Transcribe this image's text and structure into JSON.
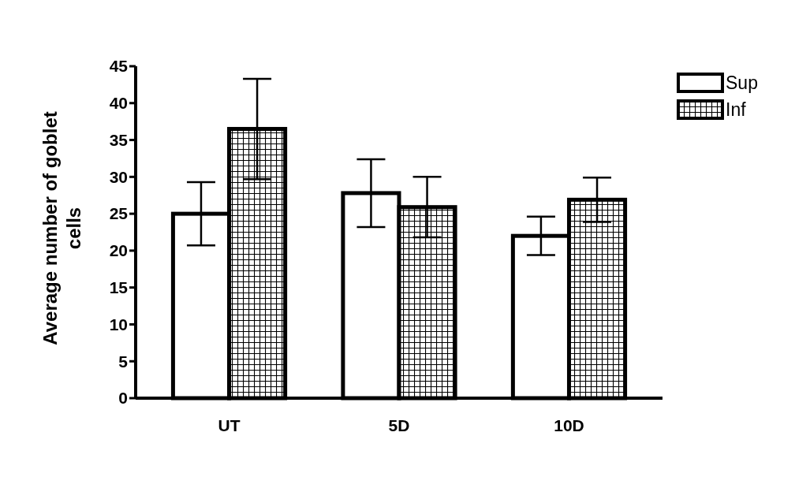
{
  "chart_data": {
    "type": "bar",
    "ylabel": "Average number of goblet cells",
    "categories": [
      "UT",
      "5D",
      "10D"
    ],
    "series": [
      {
        "name": "Sup",
        "color": "#ffffff",
        "values": [
          25,
          27.8,
          22
        ],
        "errors": [
          4.3,
          4.6,
          2.6
        ]
      },
      {
        "name": "Inf",
        "color": "#000000",
        "values": [
          36.5,
          25.9,
          26.9
        ],
        "errors": [
          6.8,
          4.1,
          3
        ]
      }
    ],
    "ylim": [
      0,
      45
    ],
    "yticks": [
      0,
      5,
      10,
      15,
      20,
      25,
      30,
      35,
      40,
      45
    ],
    "grid": false,
    "legend": "top right"
  }
}
